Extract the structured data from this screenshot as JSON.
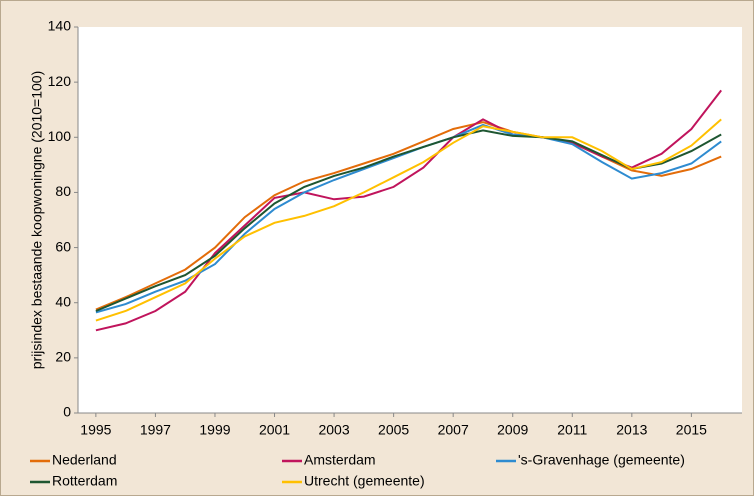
{
  "chart_data": {
    "type": "line",
    "y_label": "prijsindex bestaande koopwoningne  (2010=100)",
    "x": [
      1995,
      1996,
      1997,
      1998,
      1999,
      2000,
      2001,
      2002,
      2003,
      2004,
      2005,
      2006,
      2007,
      2008,
      2009,
      2010,
      2011,
      2012,
      2013,
      2014,
      2015,
      2016
    ],
    "xlim": [
      1994.4,
      2016.7
    ],
    "xticks": [
      1995,
      1997,
      1999,
      2001,
      2003,
      2005,
      2007,
      2009,
      2011,
      2013,
      2015
    ],
    "ylim": [
      0,
      140
    ],
    "yticks": [
      0,
      20,
      40,
      60,
      80,
      100,
      120,
      140
    ],
    "grid": false,
    "series": [
      {
        "name": "Nederland",
        "color": "#e36c09",
        "values": [
          37.5,
          42,
          47,
          52,
          60,
          71,
          79,
          84,
          87,
          90.5,
          94,
          98.5,
          103,
          105.5,
          102,
          100,
          98,
          93,
          88,
          86,
          88.5,
          93
        ]
      },
      {
        "name": "Amsterdam",
        "color": "#c0145c",
        "values": [
          30,
          32.5,
          37,
          44,
          58,
          68,
          78,
          80,
          77.5,
          78.5,
          82,
          89,
          100,
          106.5,
          101,
          100,
          98,
          93,
          89,
          94,
          103,
          117
        ]
      },
      {
        "name": "'s-Gravenhage (gemeente)",
        "color": "#2e8bd0",
        "values": [
          36.5,
          39.5,
          44,
          48,
          54,
          65,
          74,
          80,
          84.5,
          88.5,
          92.5,
          96.5,
          100,
          104.5,
          101,
          100,
          97.5,
          91,
          85,
          87,
          90.5,
          98.5
        ]
      },
      {
        "name": "Rotterdam",
        "color": "#1e5631",
        "values": [
          37,
          41.5,
          46,
          50,
          57,
          67,
          76,
          82,
          86,
          89,
          93,
          96.5,
          100,
          102.5,
          100.5,
          100,
          98.5,
          93.5,
          88.5,
          90.5,
          95,
          101
        ]
      },
      {
        "name": "Utrecht (gemeente)",
        "color": "#ffc000",
        "values": [
          33.5,
          37,
          42,
          47,
          56,
          64,
          69,
          71.5,
          75,
          80,
          85.5,
          91,
          98,
          104,
          102,
          100,
          100,
          95,
          88.5,
          91,
          97,
          106.5
        ]
      }
    ]
  }
}
